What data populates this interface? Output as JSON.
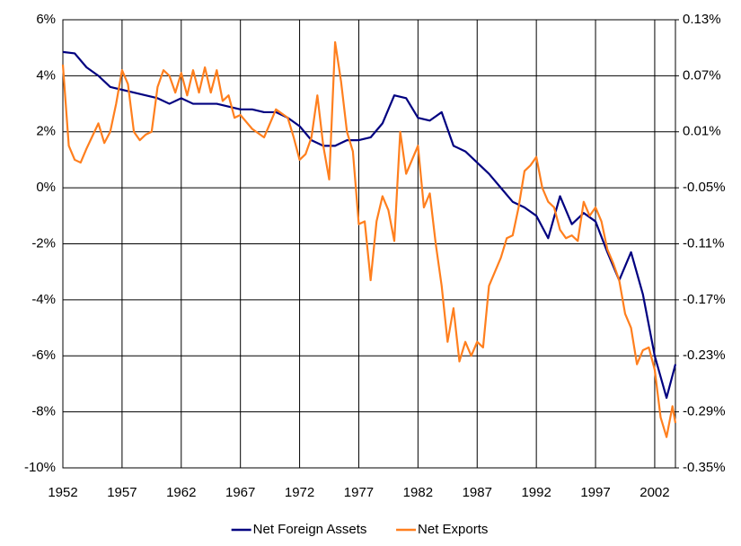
{
  "chart_data": {
    "type": "line",
    "xlim": [
      1952,
      2003.75
    ],
    "xticks": [
      1952,
      1957,
      1962,
      1967,
      1972,
      1977,
      1982,
      1987,
      1992,
      1997,
      2002
    ],
    "ylim": [
      -10,
      6
    ],
    "yticks": [
      {
        "value": -10,
        "label": "-10%"
      },
      {
        "value": -8,
        "label": "-8%"
      },
      {
        "value": -6,
        "label": "-6%"
      },
      {
        "value": -4,
        "label": "-4%"
      },
      {
        "value": -2,
        "label": "-2%"
      },
      {
        "value": 0,
        "label": "0%"
      },
      {
        "value": 2,
        "label": "2%"
      },
      {
        "value": 4,
        "label": "4%"
      },
      {
        "value": 6,
        "label": "6%"
      }
    ],
    "y2lim": [
      -0.35,
      0.13
    ],
    "y2ticks": [
      {
        "value": -0.35,
        "label": "-0.35%"
      },
      {
        "value": -0.29,
        "label": "-0.29%"
      },
      {
        "value": -0.23,
        "label": "-0.23%"
      },
      {
        "value": -0.17,
        "label": "-0.17%"
      },
      {
        "value": -0.11,
        "label": "-0.11%"
      },
      {
        "value": -0.05,
        "label": "-0.05%"
      },
      {
        "value": 0.01,
        "label": "0.01%"
      },
      {
        "value": 0.07,
        "label": "0.07%"
      },
      {
        "value": 0.13,
        "label": "0.13%"
      }
    ],
    "grid": true,
    "legend": "bottom",
    "series": [
      {
        "name": "Net Foreign Assets",
        "color": "#000080",
        "x": [
          1952,
          1953,
          1954,
          1955,
          1956,
          1957,
          1958,
          1959,
          1960,
          1961,
          1962,
          1963,
          1964,
          1965,
          1966,
          1967,
          1968,
          1969,
          1970,
          1971,
          1972,
          1973,
          1974,
          1975,
          1976,
          1977,
          1978,
          1979,
          1980,
          1981,
          1982,
          1983,
          1984,
          1985,
          1986,
          1987,
          1988,
          1989,
          1990,
          1991,
          1992,
          1993,
          1994,
          1995,
          1996,
          1997,
          1998,
          1999,
          2000,
          2001,
          2002,
          2003,
          2003.75
        ],
        "values": [
          4.85,
          4.8,
          4.3,
          4.0,
          3.6,
          3.5,
          3.4,
          3.3,
          3.2,
          3.0,
          3.2,
          3.0,
          3.0,
          3.0,
          2.9,
          2.8,
          2.8,
          2.7,
          2.7,
          2.5,
          2.2,
          1.7,
          1.5,
          1.5,
          1.7,
          1.7,
          1.8,
          2.3,
          3.3,
          3.2,
          2.5,
          2.4,
          2.7,
          1.5,
          1.3,
          0.9,
          0.5,
          0.0,
          -0.5,
          -0.7,
          -1.0,
          -1.8,
          -0.3,
          -1.3,
          -0.9,
          -1.2,
          -2.3,
          -3.3,
          -2.3,
          -3.8,
          -6.0,
          -7.5,
          -6.3
        ]
      },
      {
        "name": "Net Exports",
        "color": "#ff7f1e",
        "axis": "y2",
        "x": [
          1952,
          1952.5,
          1953,
          1953.5,
          1954,
          1955,
          1955.5,
          1956,
          1956.5,
          1957,
          1957.5,
          1958,
          1958.5,
          1959,
          1959.5,
          1960,
          1960.5,
          1961,
          1961.5,
          1962,
          1962.5,
          1963,
          1963.5,
          1964,
          1964.5,
          1965,
          1965.5,
          1966,
          1966.5,
          1967,
          1968,
          1969,
          1970,
          1971,
          1971.5,
          1972,
          1972.5,
          1973,
          1973.5,
          1974,
          1974.5,
          1975,
          1975.5,
          1976,
          1976.5,
          1977,
          1977.5,
          1978,
          1978.5,
          1979,
          1979.5,
          1980,
          1980.5,
          1981,
          1981.5,
          1982,
          1982.5,
          1983,
          1983.5,
          1984,
          1984.5,
          1985,
          1985.5,
          1986,
          1986.5,
          1987,
          1987.5,
          1988,
          1988.5,
          1989,
          1989.5,
          1990,
          1990.5,
          1991,
          1991.5,
          1992,
          1992.5,
          1993,
          1993.5,
          1994,
          1994.5,
          1995,
          1995.5,
          1996,
          1996.5,
          1997,
          1997.5,
          1998,
          1998.5,
          1999,
          1999.5,
          2000,
          2000.5,
          2001,
          2001.5,
          2002,
          2002.5,
          2003,
          2003.5,
          2003.75
        ],
        "values": [
          0.082,
          -0.005,
          -0.02,
          -0.023,
          -0.008,
          0.019,
          -0.002,
          0.01,
          0.04,
          0.076,
          0.061,
          0.01,
          0.001,
          0.007,
          0.01,
          0.058,
          0.076,
          0.07,
          0.052,
          0.073,
          0.049,
          0.076,
          0.052,
          0.079,
          0.052,
          0.076,
          0.043,
          0.049,
          0.025,
          0.028,
          0.013,
          0.004,
          0.034,
          0.025,
          0.004,
          -0.02,
          -0.014,
          0.004,
          0.049,
          -0.005,
          -0.041,
          0.106,
          0.064,
          0.01,
          -0.011,
          -0.089,
          -0.086,
          -0.149,
          -0.086,
          -0.059,
          -0.074,
          -0.107,
          0.01,
          -0.035,
          -0.02,
          -0.005,
          -0.071,
          -0.056,
          -0.11,
          -0.155,
          -0.215,
          -0.179,
          -0.236,
          -0.215,
          -0.23,
          -0.215,
          -0.221,
          -0.155,
          -0.14,
          -0.125,
          -0.104,
          -0.101,
          -0.071,
          -0.032,
          -0.026,
          -0.017,
          -0.05,
          -0.065,
          -0.071,
          -0.095,
          -0.104,
          -0.101,
          -0.107,
          -0.065,
          -0.08,
          -0.071,
          -0.086,
          -0.116,
          -0.131,
          -0.149,
          -0.185,
          -0.2,
          -0.239,
          -0.224,
          -0.221,
          -0.245,
          -0.296,
          -0.317,
          -0.284,
          -0.302
        ]
      }
    ]
  }
}
